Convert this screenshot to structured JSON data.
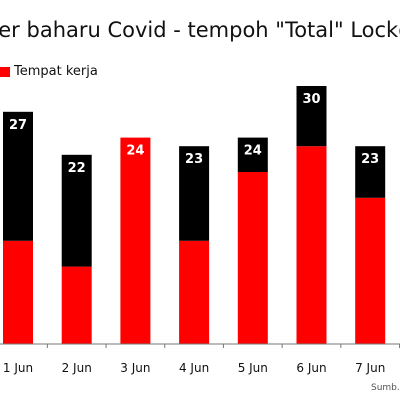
{
  "chart_data": {
    "type": "bar",
    "stacked": true,
    "title": "...ter baharu Covid - tempoh \"Total\" Lockd...",
    "categories": [
      "1 Jun",
      "2 Jun",
      "3 Jun",
      "4 Jun",
      "5 Jun",
      "6 Jun",
      "7 Jun"
    ],
    "series": [
      {
        "name": "Tempat kerja",
        "color": "#ff0000",
        "values": [
          12,
          9,
          24,
          12,
          20,
          23,
          17
        ]
      },
      {
        "name": "",
        "color": "#000000",
        "values": [
          15,
          13,
          0,
          11,
          4,
          7,
          6
        ]
      }
    ],
    "totals": [
      "27",
      "22",
      "24",
      "23",
      "24",
      "30",
      "23"
    ],
    "ylim": [
      0,
      32
    ],
    "grid": false,
    "legend_position": "top-left"
  },
  "source_note": "Sumb..."
}
